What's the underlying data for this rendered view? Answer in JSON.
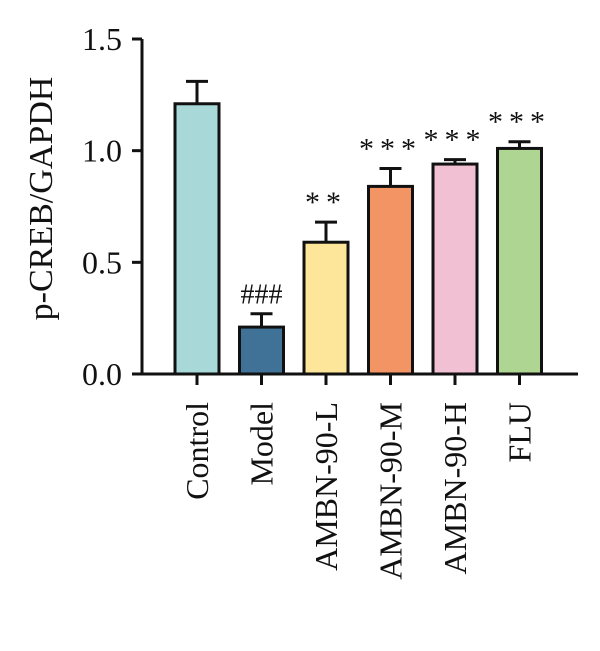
{
  "chart_data": {
    "type": "bar",
    "title": "",
    "xlabel": "",
    "ylabel": "p-CREB/GAPDH",
    "ylim": [
      0,
      1.5
    ],
    "yticks": [
      "0.0",
      "0.5",
      "1.0",
      "1.5"
    ],
    "grid": false,
    "legend": "none",
    "categories": [
      "Control",
      "Model",
      "AMBN-90-L",
      "AMBN-90-M",
      "AMBN-90-H",
      "FLU"
    ],
    "values": [
      1.21,
      0.21,
      0.59,
      0.84,
      0.94,
      1.01
    ],
    "errors": [
      0.1,
      0.06,
      0.09,
      0.08,
      0.02,
      0.03
    ],
    "annotations": [
      "",
      "###",
      "**",
      "***",
      "***",
      "***"
    ],
    "colors": [
      "#a8d8d8",
      "#3f7296",
      "#fde59a",
      "#f39465",
      "#f1c1d3",
      "#aed591"
    ]
  }
}
